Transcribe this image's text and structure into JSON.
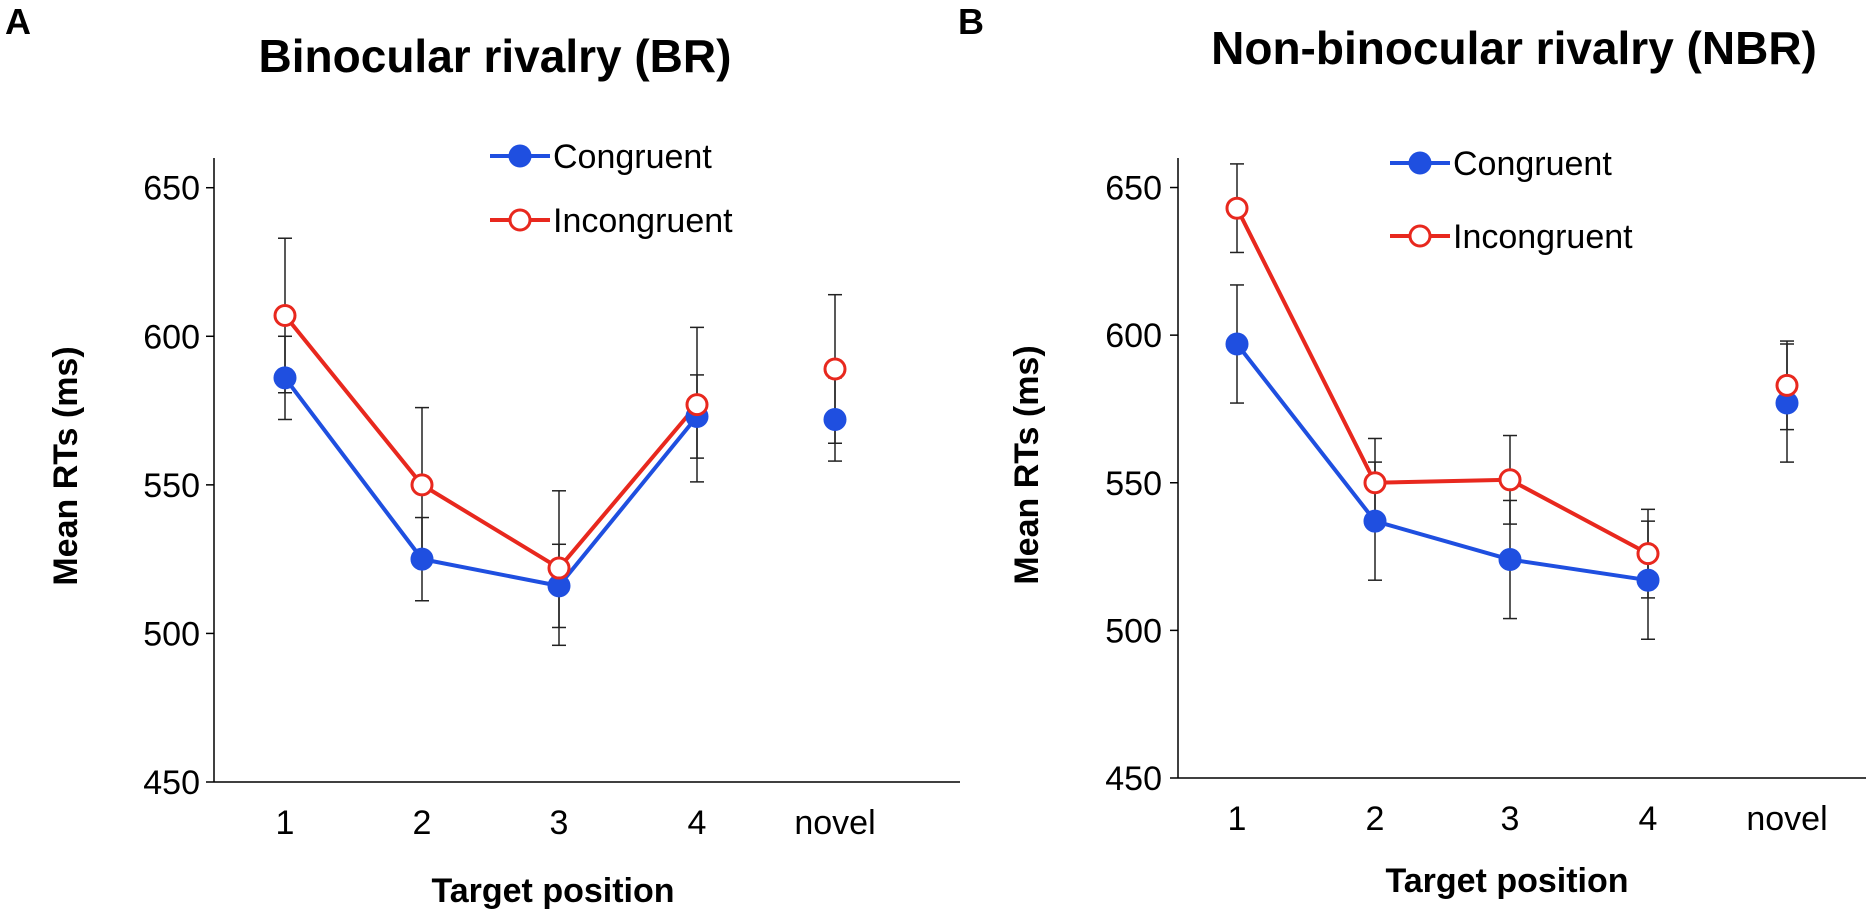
{
  "chart_data": [
    {
      "type": "line",
      "panel": "A",
      "title": "Binocular rivalry (BR)",
      "xlabel": "Target position",
      "ylabel": "Mean RTs (ms)",
      "categories": [
        "1",
        "2",
        "3",
        "4",
        "novel"
      ],
      "ylim": [
        450,
        660
      ],
      "yticks": [
        450,
        500,
        550,
        600,
        650
      ],
      "legend_position": "top-right",
      "series": [
        {
          "name": "Congruent",
          "color": "#1f4fe0",
          "marker": "filled-circle",
          "values": [
            586,
            525,
            516,
            573,
            572
          ],
          "error": [
            14,
            14,
            14,
            14,
            14
          ],
          "connected": [
            true,
            true,
            true,
            true,
            false
          ]
        },
        {
          "name": "Incongruent",
          "color": "#e8281e",
          "marker": "open-circle",
          "values": [
            607,
            550,
            522,
            577,
            589
          ],
          "error": [
            26,
            26,
            26,
            26,
            25
          ],
          "connected": [
            true,
            true,
            true,
            true,
            false
          ]
        }
      ]
    },
    {
      "type": "line",
      "panel": "B",
      "title": "Non-binocular rivalry (NBR)",
      "xlabel": "Target position",
      "ylabel": "Mean RTs (ms)",
      "categories": [
        "1",
        "2",
        "3",
        "4",
        "novel"
      ],
      "ylim": [
        450,
        660
      ],
      "yticks": [
        450,
        500,
        550,
        600,
        650
      ],
      "legend_position": "top-right",
      "series": [
        {
          "name": "Congruent",
          "color": "#1f4fe0",
          "marker": "filled-circle",
          "values": [
            597,
            537,
            524,
            517,
            577
          ],
          "error": [
            20,
            20,
            20,
            20,
            20
          ],
          "connected": [
            true,
            true,
            true,
            true,
            false
          ]
        },
        {
          "name": "Incongruent",
          "color": "#e8281e",
          "marker": "open-circle",
          "values": [
            643,
            550,
            551,
            526,
            583
          ],
          "error": [
            15,
            15,
            15,
            15,
            15
          ],
          "connected": [
            true,
            true,
            true,
            true,
            false
          ]
        }
      ]
    }
  ]
}
